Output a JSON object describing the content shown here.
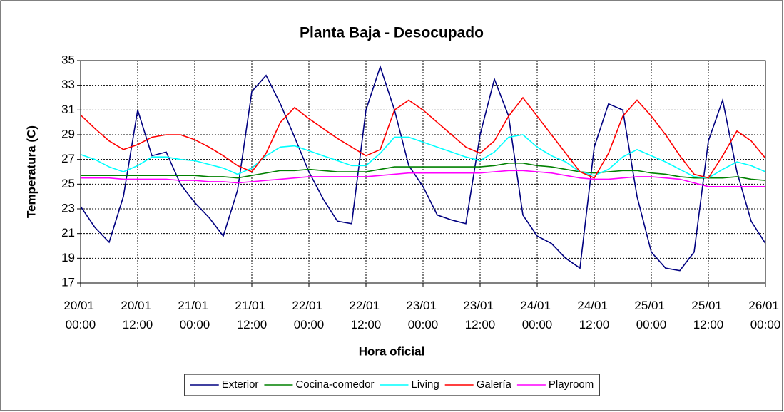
{
  "chart_data": {
    "type": "line",
    "title": "Planta Baja - Desocupado",
    "x_label": "Hora oficial",
    "y_label": "Temperatura (C)",
    "x": [
      0,
      3,
      6,
      9,
      12,
      15,
      18,
      21,
      24,
      27,
      30,
      33,
      36,
      39,
      42,
      45,
      48,
      51,
      54,
      57,
      60,
      63,
      66,
      69,
      72,
      75,
      78,
      81,
      84,
      87,
      90,
      93,
      96,
      99,
      102,
      105,
      108,
      111,
      114,
      117,
      120,
      123,
      126,
      129,
      132,
      135,
      138,
      141,
      144
    ],
    "xlim": [
      0,
      144
    ],
    "xticks": [
      {
        "value": 0,
        "label": "20/01 00:00"
      },
      {
        "value": 12,
        "label": "20/01 12:00"
      },
      {
        "value": 24,
        "label": "21/01 00:00"
      },
      {
        "value": 36,
        "label": "21/01 12:00"
      },
      {
        "value": 48,
        "label": "22/01 00:00"
      },
      {
        "value": 60,
        "label": "22/01 12:00"
      },
      {
        "value": 72,
        "label": "23/01 00:00"
      },
      {
        "value": 84,
        "label": "23/01 12:00"
      },
      {
        "value": 96,
        "label": "24/01 00:00"
      },
      {
        "value": 108,
        "label": "24/01 12:00"
      },
      {
        "value": 120,
        "label": "25/01 00:00"
      },
      {
        "value": 132,
        "label": "25/01 12:00"
      },
      {
        "value": 144,
        "label": "26/01 00:00"
      }
    ],
    "ylim": [
      17,
      35
    ],
    "yticks": [
      17,
      19,
      21,
      23,
      25,
      27,
      29,
      31,
      33,
      35
    ],
    "grid": true,
    "legend": "bottom",
    "series": [
      {
        "name": "Exterior",
        "color": "#000080",
        "values": [
          23.2,
          21.5,
          20.3,
          24.0,
          31.0,
          27.3,
          27.6,
          25.0,
          23.5,
          22.3,
          20.8,
          24.5,
          32.5,
          33.8,
          31.5,
          28.8,
          26.0,
          23.8,
          22.0,
          21.8,
          31.0,
          34.5,
          31.0,
          26.5,
          24.8,
          22.5,
          22.1,
          21.8,
          29.0,
          33.5,
          30.5,
          22.5,
          20.8,
          20.2,
          19.0,
          18.2,
          28.0,
          31.5,
          31.0,
          24.0,
          19.5,
          18.2,
          18.0,
          19.5,
          28.5,
          31.8,
          26.0,
          22.0,
          20.2
        ]
      },
      {
        "name": "Cocina-comedor",
        "color": "#008000",
        "values": [
          25.7,
          25.7,
          25.7,
          25.7,
          25.7,
          25.7,
          25.7,
          25.7,
          25.7,
          25.6,
          25.6,
          25.5,
          25.7,
          25.9,
          26.1,
          26.1,
          26.2,
          26.1,
          26.0,
          26.0,
          26.0,
          26.2,
          26.4,
          26.4,
          26.4,
          26.4,
          26.4,
          26.4,
          26.4,
          26.5,
          26.7,
          26.7,
          26.5,
          26.4,
          26.2,
          26.0,
          25.9,
          26.0,
          26.1,
          26.1,
          25.9,
          25.8,
          25.6,
          25.5,
          25.5,
          25.5,
          25.6,
          25.4,
          25.3
        ]
      },
      {
        "name": "Living",
        "color": "#00ffff",
        "values": [
          27.4,
          27.0,
          26.4,
          26.0,
          26.5,
          27.2,
          27.2,
          27.0,
          26.9,
          26.6,
          26.3,
          25.8,
          26.3,
          27.3,
          28.0,
          28.1,
          27.7,
          27.3,
          26.9,
          26.5,
          26.5,
          27.5,
          28.8,
          28.8,
          28.4,
          28.0,
          27.6,
          27.2,
          26.9,
          27.6,
          28.8,
          29.0,
          28.0,
          27.3,
          26.8,
          26.0,
          25.7,
          26.2,
          27.2,
          27.8,
          27.3,
          26.8,
          26.2,
          25.6,
          25.5,
          26.2,
          26.8,
          26.5,
          26.0
        ]
      },
      {
        "name": "Galería",
        "color": "#ff0000",
        "values": [
          30.6,
          29.5,
          28.5,
          27.8,
          28.2,
          28.8,
          29.0,
          29.0,
          28.6,
          28.0,
          27.3,
          26.5,
          26.0,
          27.5,
          30.0,
          31.2,
          30.3,
          29.5,
          28.7,
          28.0,
          27.3,
          27.8,
          31.0,
          31.8,
          31.0,
          30.0,
          29.0,
          28.0,
          27.5,
          28.5,
          30.5,
          32.0,
          30.5,
          29.0,
          27.5,
          26.0,
          25.5,
          27.5,
          30.5,
          31.8,
          30.5,
          29.0,
          27.3,
          25.8,
          25.5,
          27.3,
          29.3,
          28.5,
          27.1
        ]
      },
      {
        "name": "Playroom",
        "color": "#ff00ff",
        "values": [
          25.5,
          25.5,
          25.5,
          25.4,
          25.4,
          25.4,
          25.4,
          25.3,
          25.3,
          25.2,
          25.2,
          25.1,
          25.2,
          25.3,
          25.4,
          25.5,
          25.6,
          25.6,
          25.6,
          25.6,
          25.6,
          25.7,
          25.8,
          25.9,
          25.9,
          25.9,
          25.9,
          25.9,
          25.9,
          26.0,
          26.1,
          26.1,
          26.0,
          25.9,
          25.7,
          25.5,
          25.4,
          25.4,
          25.5,
          25.6,
          25.6,
          25.5,
          25.4,
          25.1,
          24.8,
          24.8,
          24.8,
          24.8,
          24.8
        ]
      }
    ]
  }
}
